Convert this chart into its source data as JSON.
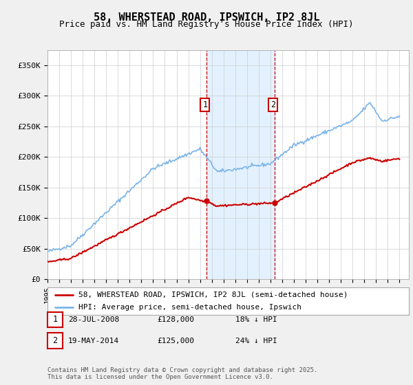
{
  "title": "58, WHERSTEAD ROAD, IPSWICH, IP2 8JL",
  "subtitle": "Price paid vs. HM Land Registry's House Price Index (HPI)",
  "ylim": [
    0,
    375000
  ],
  "yticks": [
    0,
    50000,
    100000,
    150000,
    200000,
    250000,
    300000,
    350000
  ],
  "ytick_labels": [
    "£0",
    "£50K",
    "£100K",
    "£150K",
    "£200K",
    "£250K",
    "£300K",
    "£350K"
  ],
  "sale1_year": 2008.572,
  "sale1_price": 128000,
  "sale2_year": 2014.38,
  "sale2_price": 125000,
  "sale1_text": "28-JUL-2008",
  "sale1_price_str": "£128,000",
  "sale1_pct": "18% ↓ HPI",
  "sale2_text": "19-MAY-2014",
  "sale2_price_str": "£125,000",
  "sale2_pct": "24% ↓ HPI",
  "hpi_color": "#7ab4e8",
  "price_color": "#cc0000",
  "shade_color": "#ddeeff",
  "legend1_label": "58, WHERSTEAD ROAD, IPSWICH, IP2 8JL (semi-detached house)",
  "legend2_label": "HPI: Average price, semi-detached house, Ipswich",
  "footer_text": "Contains HM Land Registry data © Crown copyright and database right 2025.\nThis data is licensed under the Open Government Licence v3.0.",
  "background_color": "#f0f0f0",
  "plot_bg_color": "#ffffff",
  "title_fontsize": 11,
  "subtitle_fontsize": 9,
  "tick_fontsize": 8,
  "legend_fontsize": 8,
  "footer_fontsize": 6.5
}
